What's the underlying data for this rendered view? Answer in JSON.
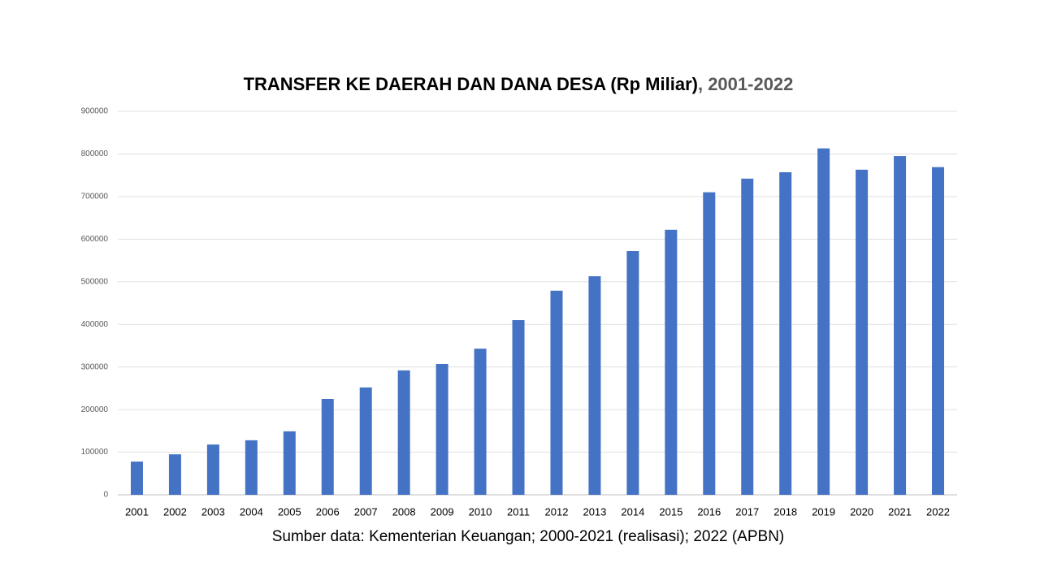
{
  "chart_data": {
    "type": "bar",
    "title": [
      "TRANSFER KE DAERAH DAN DANA DESA (Rp Miliar)",
      ", 2001-2022"
    ],
    "source": "Sumber data: Kementerian Keuangan; 2000-2021 (realisasi); 2022 (APBN)",
    "categories": [
      "2001",
      "2002",
      "2003",
      "2004",
      "2005",
      "2006",
      "2007",
      "2008",
      "2009",
      "2010",
      "2011",
      "2012",
      "2013",
      "2014",
      "2015",
      "2016",
      "2017",
      "2018",
      "2019",
      "2020",
      "2021",
      "2022"
    ],
    "values": [
      78000,
      95000,
      118000,
      128000,
      149000,
      225000,
      252000,
      292000,
      307000,
      343000,
      410000,
      479000,
      513000,
      572000,
      622000,
      710000,
      742000,
      757000,
      813000,
      763000,
      795000,
      769000
    ],
    "color": "#4472c4",
    "ylim": [
      0,
      900000
    ],
    "yticks": [
      0,
      100000,
      200000,
      300000,
      400000,
      500000,
      600000,
      700000,
      800000,
      900000
    ],
    "grid": true
  }
}
